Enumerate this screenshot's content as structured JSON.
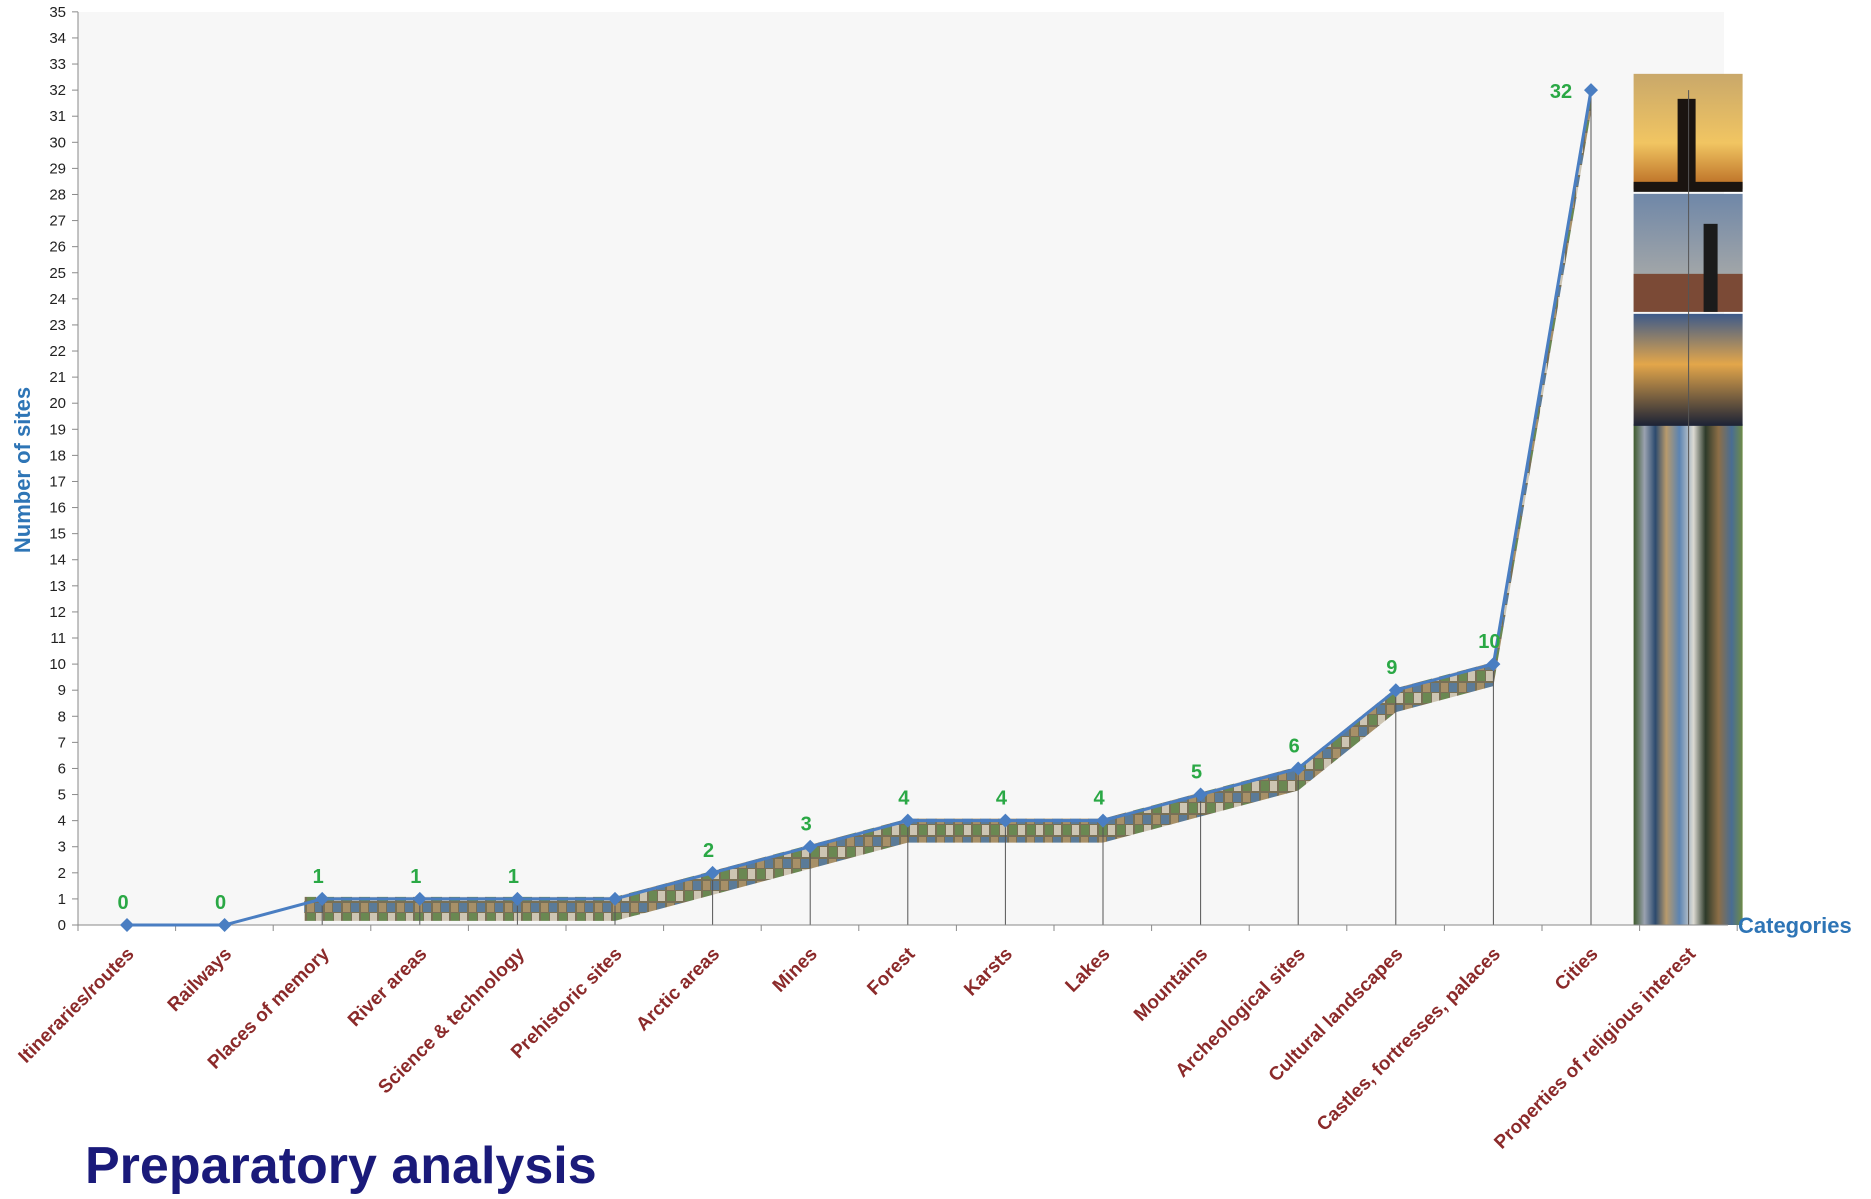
{
  "page": {
    "title": "Preparatory analysis"
  },
  "colors": {
    "line": "#4a7ec2",
    "value_label": "#2aa845",
    "axis_title": "#2e75b6",
    "category_label": "#8b2a2a",
    "tick_label": "#222222",
    "plot_background": "#f6f6f6"
  },
  "chart_data": {
    "type": "line",
    "title": "",
    "xlabel": "Categories",
    "ylabel": "Number of sites",
    "ylim": [
      0,
      35
    ],
    "y_tick_step": 1,
    "grid": false,
    "legend": "none",
    "categories": [
      "Itineraries/routes",
      "Railways",
      "Places of memory",
      "River areas",
      "Science & technology",
      "Prehistoric sites",
      "Arctic areas",
      "Mines",
      "Forest",
      "Karsts",
      "Lakes",
      "Mountains",
      "Archeological sites",
      "Cultural landscapes",
      "Castles, fortresses, palaces",
      "Cities",
      "Properties of religious interest"
    ],
    "series": [
      {
        "values": [
          0,
          0,
          1,
          1,
          1,
          1,
          2,
          3,
          4,
          4,
          4,
          5,
          6,
          9,
          10,
          32,
          32
        ]
      }
    ],
    "data_labels": [
      "0",
      "0",
      "1",
      "1",
      "1",
      "",
      "2",
      "3",
      "4",
      "4",
      "4",
      "5",
      "6",
      "9",
      "10",
      "32",
      ""
    ],
    "marker": "diamond"
  }
}
